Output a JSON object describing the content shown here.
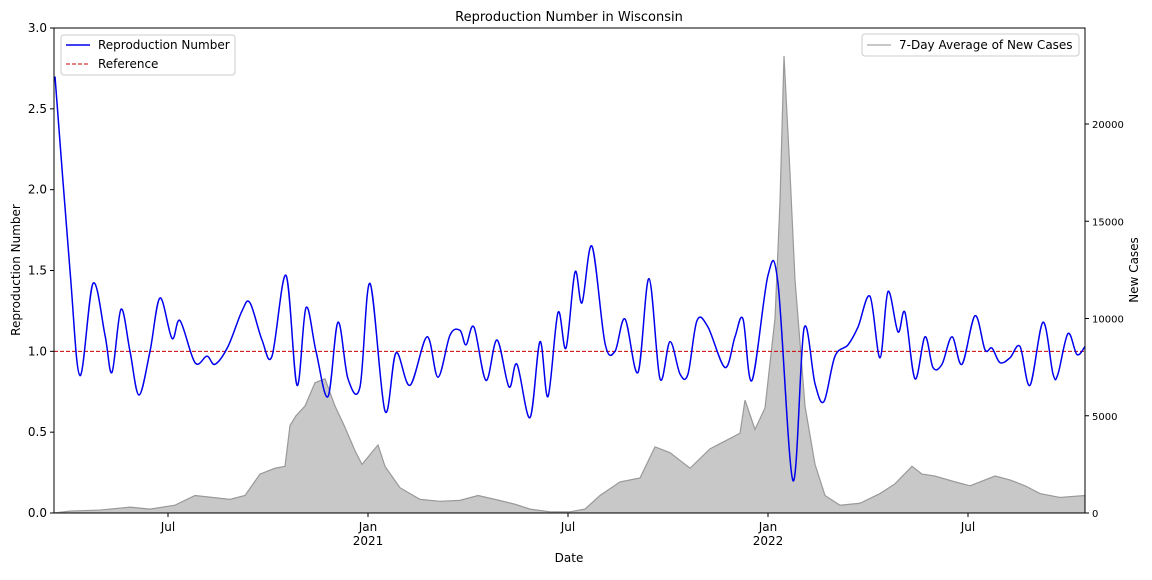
{
  "chart_data": {
    "type": "line",
    "title": "Reproduction Number in Wisconsin",
    "x_label": "Date",
    "y_label": "Reproduction Number",
    "y2_label": "New Cases",
    "xlim": [
      2.58,
      33.51
    ],
    "xticks": [
      {
        "value": 6,
        "label": "Jul"
      },
      {
        "value": 12,
        "label": "Jan\n2021"
      },
      {
        "value": 18,
        "label": "Jul"
      },
      {
        "value": 24,
        "label": "Jan\n2022"
      },
      {
        "value": 30,
        "label": "Jul"
      }
    ],
    "ylim": [
      0,
      3
    ],
    "yticks": [
      {
        "value": 0,
        "label": "0.0"
      },
      0.5,
      {
        "value": 1,
        "label": "1.0"
      },
      1.5,
      {
        "value": 2,
        "label": "2.0"
      },
      2.5,
      {
        "value": 3,
        "label": "3.0"
      }
    ],
    "y2lim": [
      0,
      24936
    ],
    "y2ticks": [
      0,
      5000,
      10000,
      15000,
      20000
    ],
    "series": [
      {
        "name": "Reproduction Number",
        "color": "#0000ee",
        "legend": "upper left",
        "x": [
          2.61,
          3.06,
          3.36,
          3.75,
          4.11,
          4.32,
          4.59,
          4.86,
          5.13,
          5.46,
          5.76,
          6.12,
          6.36,
          6.81,
          7.17,
          7.41,
          7.8,
          8.22,
          8.46,
          8.82,
          9.12,
          9.54,
          9.87,
          10.14,
          10.44,
          10.8,
          11.1,
          11.4,
          11.76,
          12.06,
          12.51,
          12.84,
          13.26,
          13.77,
          14.1,
          14.46,
          14.76,
          14.94,
          15.18,
          15.54,
          15.87,
          16.23,
          16.47,
          16.86,
          17.16,
          17.4,
          17.7,
          17.94,
          18.21,
          18.42,
          18.72,
          19.11,
          19.41,
          19.71,
          20.1,
          20.43,
          20.76,
          21.06,
          21.36,
          21.6,
          21.87,
          22.2,
          22.71,
          23.01,
          23.25,
          23.52,
          24.0,
          24.3,
          24.75,
          25.08,
          25.41,
          25.68,
          26.01,
          26.4,
          26.7,
          27.06,
          27.36,
          27.6,
          27.9,
          28.11,
          28.41,
          28.71,
          28.95,
          29.22,
          29.52,
          29.82,
          30.21,
          30.51,
          30.72,
          30.96,
          31.26,
          31.56,
          31.86,
          32.25,
          32.55,
          32.7,
          33.0,
          33.27,
          33.51
        ],
        "values": [
          2.7,
          1.5,
          0.85,
          1.42,
          1.1,
          0.87,
          1.26,
          1.0,
          0.73,
          1.0,
          1.33,
          1.08,
          1.19,
          0.93,
          0.97,
          0.92,
          1.03,
          1.25,
          1.3,
          1.07,
          0.97,
          1.47,
          0.79,
          1.27,
          1.0,
          0.72,
          1.18,
          0.83,
          0.78,
          1.42,
          0.63,
          0.99,
          0.79,
          1.09,
          0.84,
          1.1,
          1.13,
          1.04,
          1.15,
          0.82,
          1.07,
          0.78,
          0.92,
          0.59,
          1.06,
          0.72,
          1.24,
          1.02,
          1.49,
          1.3,
          1.65,
          1.05,
          1.0,
          1.2,
          0.87,
          1.45,
          0.83,
          1.06,
          0.86,
          0.86,
          1.19,
          1.15,
          0.9,
          1.09,
          1.2,
          0.82,
          1.47,
          1.42,
          0.2,
          1.14,
          0.8,
          0.69,
          0.97,
          1.04,
          1.15,
          1.34,
          0.96,
          1.37,
          1.12,
          1.24,
          0.83,
          1.09,
          0.9,
          0.92,
          1.09,
          0.92,
          1.22,
          1.01,
          1.02,
          0.93,
          0.96,
          1.03,
          0.79,
          1.18,
          0.86,
          0.86,
          1.11,
          0.98,
          1.03
        ]
      },
      {
        "name": "7-Day Average of New Cases",
        "color": "#c8c8c8",
        "axis": "y2",
        "legend": "upper right",
        "x": [
          2.58,
          3.06,
          3.96,
          4.86,
          5.46,
          6.21,
          6.81,
          7.86,
          8.31,
          8.76,
          9.21,
          9.51,
          9.66,
          9.84,
          10.11,
          10.41,
          10.71,
          11.01,
          11.31,
          11.61,
          11.82,
          12.06,
          12.3,
          12.51,
          12.96,
          13.56,
          14.16,
          14.76,
          15.3,
          15.81,
          16.41,
          16.86,
          17.46,
          18.06,
          18.51,
          18.96,
          19.56,
          20.16,
          20.61,
          21.06,
          21.66,
          22.26,
          22.71,
          23.16,
          23.31,
          23.61,
          23.91,
          24.21,
          24.36,
          24.48,
          24.66,
          24.81,
          25.11,
          25.41,
          25.71,
          26.16,
          26.76,
          27.36,
          27.81,
          28.32,
          28.62,
          29.01,
          29.61,
          30.06,
          30.51,
          30.81,
          31.26,
          31.71,
          32.16,
          32.76,
          33.51
        ],
        "values": [
          0,
          100,
          150,
          300,
          200,
          400,
          900,
          700,
          900,
          2000,
          2300,
          2400,
          4500,
          5000,
          5500,
          6700,
          6900,
          5500,
          4400,
          3200,
          2500,
          3000,
          3500,
          2400,
          1300,
          700,
          600,
          650,
          900,
          700,
          450,
          200,
          60,
          60,
          200,
          900,
          1600,
          1800,
          3400,
          3100,
          2300,
          3300,
          3700,
          4100,
          5800,
          4300,
          5400,
          10000,
          16000,
          23500,
          17500,
          12000,
          5500,
          2500,
          900,
          400,
          500,
          1000,
          1500,
          2400,
          2000,
          1900,
          1600,
          1400,
          1700,
          1900,
          1700,
          1400,
          1000,
          800,
          900
        ]
      }
    ],
    "reference": {
      "name": "Reference",
      "value": 1,
      "color": "#cc0000"
    }
  }
}
